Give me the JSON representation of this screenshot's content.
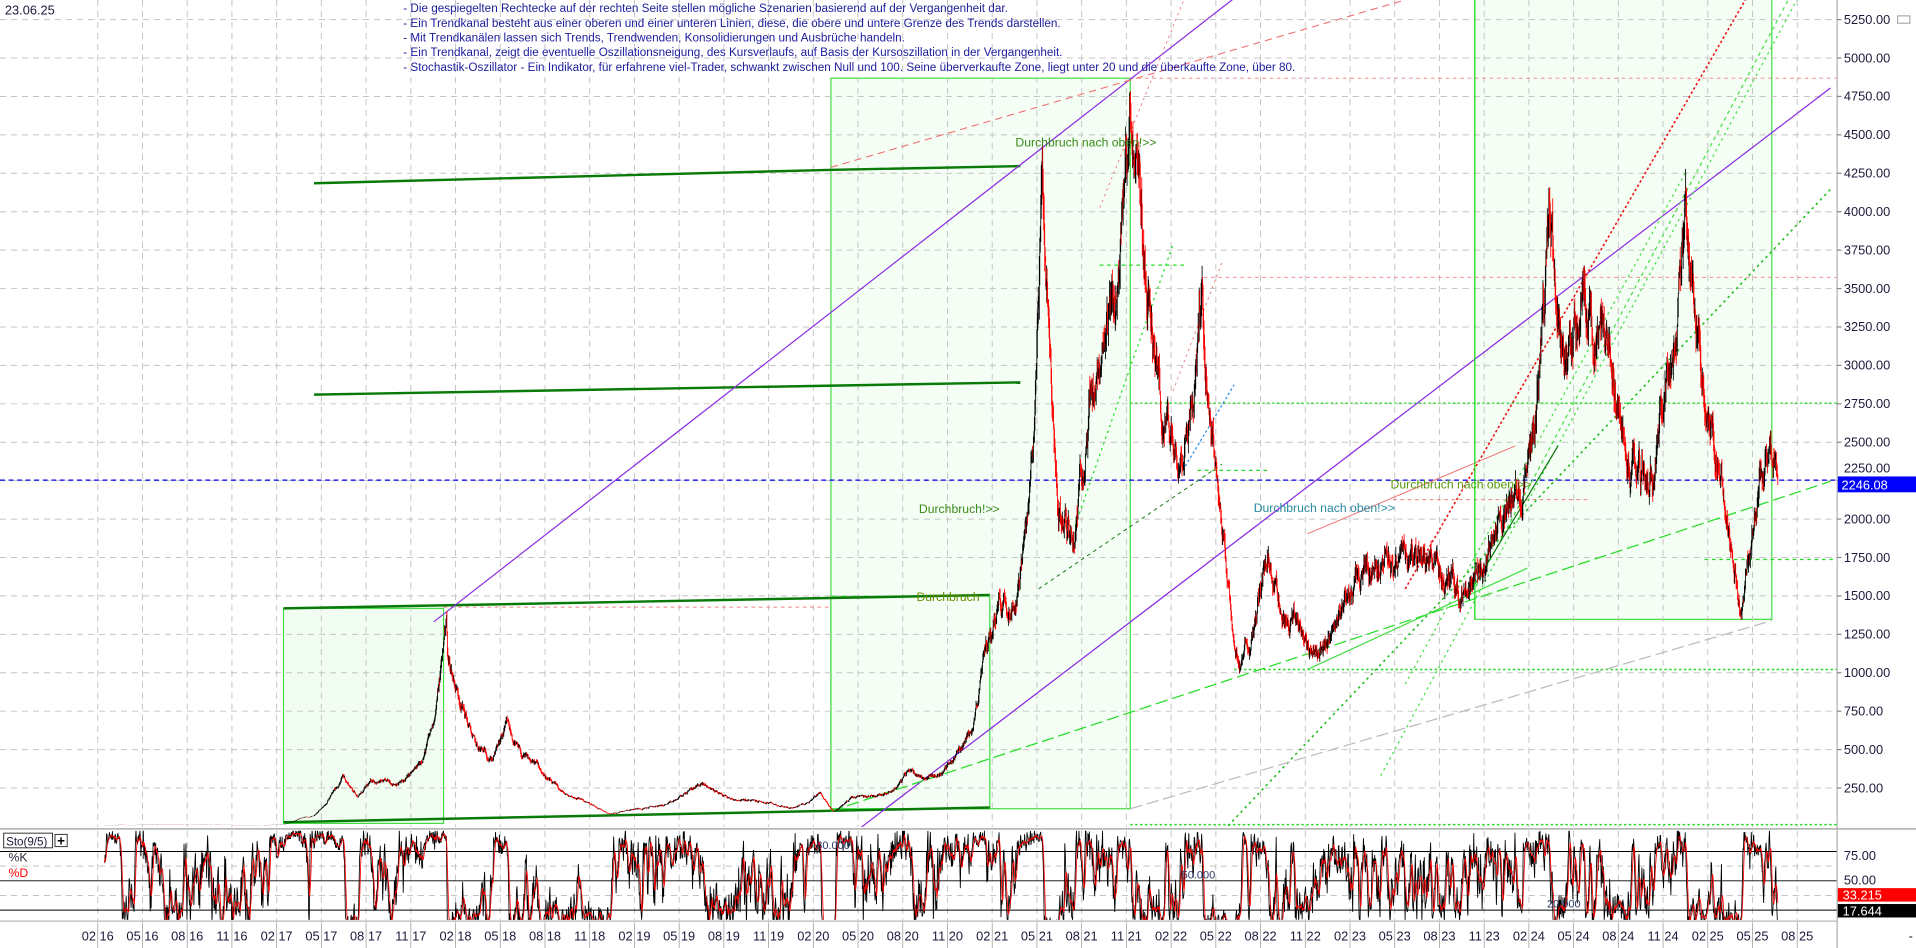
{
  "header": {
    "date": "23.06.25"
  },
  "notes": [
    "- Die gespiegelten Rechtecke auf der rechten Seite stellen mögliche Szenarien basierend auf der Vergangenheit dar.",
    "- Ein Trendkanal besteht aus einer oberen und einer unteren Linien, diese, die obere und untere Grenze des Trends darstellen.",
    "- Mit Trendkanälen lassen sich Trends, Trendwenden, Konsolidierungen und Ausbrüche handeln.",
    "- Ein Trendkanal, zeigt die eventuelle Oszillationsneigung, des Kursverlaufs, auf Basis der Kursoszillation in der Vergangenheit.",
    "- Stochastik-Oszillator - Ein Indikator, für erfahrene viel-Trader, schwankt zwischen Null und 100. Seine überverkaufte Zone, liegt unter 20 und die überkaufte Zone, über 80."
  ],
  "annotations": [
    {
      "text": "Durchbruch nach oben!>>",
      "color": "#3a8a1a"
    },
    {
      "text": "Durchbruch!>>",
      "color": "#3a8a1a"
    },
    {
      "text": "Durchbruch",
      "color": "#6a8a00"
    },
    {
      "text": "Durchbruch nach oben!>>",
      "color": "#2a8aa0"
    },
    {
      "text": "Durchbruch nach oben!>>",
      "color": "#5a9a10"
    }
  ],
  "price_axis": {
    "ticks": [
      "250.00",
      "500.00",
      "750.00",
      "1000.00",
      "1250.00",
      "1500.00",
      "1750.00",
      "2000.00",
      "2250.00",
      "2500.00",
      "2750.00",
      "3000.00",
      "3250.00",
      "3500.00",
      "3750.00",
      "4000.00",
      "4250.00",
      "4500.00",
      "4750.00",
      "5000.00",
      "5250.00"
    ],
    "current": "2246.08",
    "current_color": "#0000ff"
  },
  "indicator": {
    "name": "Sto(9/5)",
    "k_label": "%K",
    "d_label": "%D",
    "levels": [
      "80.000",
      "50.000",
      "20.000"
    ],
    "ticks": [
      "75.00",
      "50.00"
    ],
    "d_value": "33.215",
    "k_value": "17.644",
    "k_color": "#000000",
    "d_color": "#ff0000"
  },
  "date_axis": {
    "labels": [
      "02 16",
      "05 16",
      "08 16",
      "11 16",
      "02 17",
      "05 17",
      "08 17",
      "11 17",
      "02 18",
      "05 18",
      "08 18",
      "11 18",
      "02 19",
      "05 19",
      "08 19",
      "11 19",
      "02 20",
      "05 20",
      "08 20",
      "11 20",
      "02 21",
      "05 21",
      "08 21",
      "11 21",
      "02 22",
      "05 22",
      "08 22",
      "11 22",
      "02 23",
      "05 23",
      "08 23",
      "11 23",
      "02 24",
      "05 24",
      "08 24",
      "11 24",
      "02 25",
      "05 25",
      "08 25"
    ]
  },
  "chart_data": {
    "type": "line",
    "ylim": [
      0,
      5400
    ],
    "last_value": 2246.08,
    "up_color": "#000000",
    "down_color": "#ff0000",
    "points": [
      [
        "2016-02",
        5
      ],
      [
        "2016-03",
        10
      ],
      [
        "2016-04",
        9
      ],
      [
        "2016-05",
        12
      ],
      [
        "2016-06",
        14
      ],
      [
        "2016-07",
        11
      ],
      [
        "2016-08",
        10
      ],
      [
        "2016-09",
        11
      ],
      [
        "2016-10",
        10
      ],
      [
        "2016-11",
        9
      ],
      [
        "2016-12",
        8
      ],
      [
        "2017-01",
        9
      ],
      [
        "2017-02",
        14
      ],
      [
        "2017-03",
        50
      ],
      [
        "2017-04",
        70
      ],
      [
        "2017-05",
        180
      ],
      [
        "2017-06",
        330
      ],
      [
        "2017-07",
        200
      ],
      [
        "2017-08",
        300
      ],
      [
        "2017-09",
        280
      ],
      [
        "2017-10",
        290
      ],
      [
        "2017-11",
        380
      ],
      [
        "2017-12",
        650
      ],
      [
        "2018-01-13",
        1400
      ],
      [
        "2018-01",
        1100
      ],
      [
        "2018-02",
        800
      ],
      [
        "2018-03",
        500
      ],
      [
        "2018-04",
        450
      ],
      [
        "2018-05",
        650
      ],
      [
        "2018-06",
        450
      ],
      [
        "2018-07",
        400
      ],
      [
        "2018-08",
        280
      ],
      [
        "2018-09",
        200
      ],
      [
        "2018-10",
        180
      ],
      [
        "2018-11",
        120
      ],
      [
        "2018-12-14",
        80
      ],
      [
        "2019-01",
        110
      ],
      [
        "2019-02",
        120
      ],
      [
        "2019-03",
        130
      ],
      [
        "2019-04",
        150
      ],
      [
        "2019-05",
        220
      ],
      [
        "2019-06",
        280
      ],
      [
        "2019-07",
        230
      ],
      [
        "2019-08",
        180
      ],
      [
        "2019-09",
        170
      ],
      [
        "2019-10",
        160
      ],
      [
        "2019-11",
        140
      ],
      [
        "2019-12",
        120
      ],
      [
        "2020-01",
        150
      ],
      [
        "2020-02",
        230
      ],
      [
        "2020-03-13",
        100
      ],
      [
        "2020-04",
        180
      ],
      [
        "2020-05",
        190
      ],
      [
        "2020-06",
        210
      ],
      [
        "2020-07",
        250
      ],
      [
        "2020-08",
        370
      ],
      [
        "2020-09",
        320
      ],
      [
        "2020-10",
        340
      ],
      [
        "2020-11",
        450
      ],
      [
        "2020-12",
        600
      ],
      [
        "2021-01",
        1100
      ],
      [
        "2021-02",
        1500
      ],
      [
        "2021-03",
        1500
      ],
      [
        "2021-04",
        2000
      ],
      [
        "2021-05-12",
        4300
      ],
      [
        "2021-06",
        2000
      ],
      [
        "2021-07",
        1900
      ],
      [
        "2021-08",
        2800
      ],
      [
        "2021-09",
        2900
      ],
      [
        "2021-10",
        3500
      ],
      [
        "2021-11-10",
        4800
      ],
      [
        "2021-12",
        3500
      ],
      [
        "2022-01",
        2600
      ],
      [
        "2022-02",
        2500
      ],
      [
        "2022-03",
        2800
      ],
      [
        "2022-04-02",
        3550
      ],
      [
        "2022-05",
        2000
      ],
      [
        "2022-06-18",
        1000
      ],
      [
        "2022-07",
        1300
      ],
      [
        "2022-08",
        1800
      ],
      [
        "2022-09",
        1400
      ],
      [
        "2022-10",
        1350
      ],
      [
        "2022-11",
        1150
      ],
      [
        "2022-12",
        1150
      ],
      [
        "2023-01",
        1500
      ],
      [
        "2023-02",
        1550
      ],
      [
        "2023-03",
        1650
      ],
      [
        "2023-04",
        1800
      ],
      [
        "2023-05",
        1700
      ],
      [
        "2023-06",
        1700
      ],
      [
        "2023-07",
        1750
      ],
      [
        "2023-08",
        1600
      ],
      [
        "2023-09",
        1550
      ],
      [
        "2023-10",
        1600
      ],
      [
        "2023-11",
        1850
      ],
      [
        "2023-12",
        2100
      ],
      [
        "2024-01",
        2200
      ],
      [
        "2024-02",
        2800
      ],
      [
        "2024-03-12",
        4000
      ],
      [
        "2024-04",
        3000
      ],
      [
        "2024-05",
        3400
      ],
      [
        "2024-06",
        3300
      ],
      [
        "2024-07",
        3100
      ],
      [
        "2024-08",
        2400
      ],
      [
        "2024-09",
        2300
      ],
      [
        "2024-10",
        2400
      ],
      [
        "2024-11",
        3000
      ],
      [
        "2024-12-16",
        3900
      ],
      [
        "2025-01",
        3100
      ],
      [
        "2025-02",
        2500
      ],
      [
        "2025-03",
        1900
      ],
      [
        "2025-04-09",
        1400
      ],
      [
        "2025-05",
        2400
      ],
      [
        "2025-06-10",
        2600
      ],
      [
        "2025-06-23",
        2246.08
      ]
    ]
  }
}
